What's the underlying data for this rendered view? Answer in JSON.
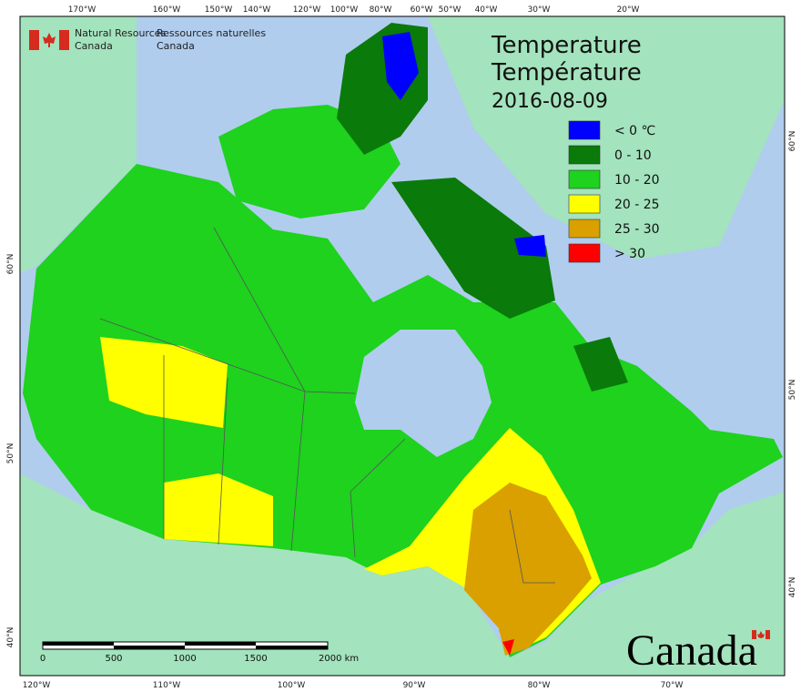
{
  "header": {
    "org_en": [
      "Natural Resources",
      "Canada"
    ],
    "org_fr": [
      "Ressources naturelles",
      "Canada"
    ]
  },
  "title": [
    "Temperature",
    "Température",
    "2016-08-09"
  ],
  "legend": [
    {
      "label": "< 0 ℃",
      "color": "#0000ff"
    },
    {
      "label": "0 - 10",
      "color": "#0a7a0a"
    },
    {
      "label": "10 - 20",
      "color": "#1ed21e"
    },
    {
      "label": "20 - 25",
      "color": "#ffff00"
    },
    {
      "label": "25 - 30",
      "color": "#d9a000"
    },
    {
      "label": "> 30",
      "color": "#ff0000"
    }
  ],
  "graticule": {
    "top": [
      "170°W",
      "160°W",
      "150°W",
      "140°W",
      "120°W",
      "100°W",
      "80°W",
      "60°W",
      "50°W",
      "40°W",
      "30°W",
      "20°W"
    ],
    "bottom": [
      "120°W",
      "110°W",
      "100°W",
      "90°W",
      "80°W",
      "70°W"
    ],
    "left": [
      "60°N",
      "50°N",
      "40°N"
    ],
    "right": [
      "60°N",
      "50°N",
      "40°N"
    ]
  },
  "scale_bar": [
    "0",
    "500",
    "1000",
    "1500",
    "2000 km"
  ],
  "wordmark": "Canada"
}
